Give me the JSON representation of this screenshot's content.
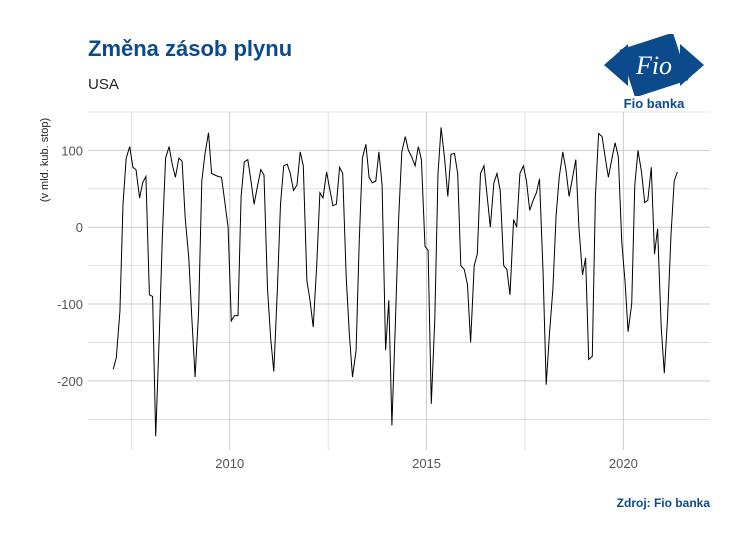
{
  "chart_data": {
    "type": "line",
    "title": "Změna zásob plynu",
    "subtitle": "USA",
    "ylabel": "(v mld. kub. stop)",
    "xlabel": "",
    "xlim": [
      2006.4,
      2022.2
    ],
    "ylim": [
      -290,
      150
    ],
    "x_ticks": [
      2010,
      2015,
      2020
    ],
    "y_ticks": [
      100,
      0,
      -100,
      -200
    ],
    "grid": true,
    "series": [
      {
        "color": "#000000",
        "points": [
          [
            2007.04,
            -185
          ],
          [
            2007.12,
            -170
          ],
          [
            2007.21,
            -110
          ],
          [
            2007.29,
            30
          ],
          [
            2007.37,
            90
          ],
          [
            2007.46,
            105
          ],
          [
            2007.54,
            78
          ],
          [
            2007.62,
            75
          ],
          [
            2007.71,
            38
          ],
          [
            2007.79,
            58
          ],
          [
            2007.87,
            66
          ],
          [
            2007.96,
            -88
          ],
          [
            2008.04,
            -90
          ],
          [
            2008.12,
            -272
          ],
          [
            2008.21,
            -140
          ],
          [
            2008.29,
            -10
          ],
          [
            2008.37,
            90
          ],
          [
            2008.46,
            105
          ],
          [
            2008.54,
            82
          ],
          [
            2008.62,
            65
          ],
          [
            2008.71,
            90
          ],
          [
            2008.79,
            86
          ],
          [
            2008.87,
            12
          ],
          [
            2008.96,
            -40
          ],
          [
            2009.04,
            -120
          ],
          [
            2009.12,
            -195
          ],
          [
            2009.21,
            -110
          ],
          [
            2009.29,
            60
          ],
          [
            2009.37,
            95
          ],
          [
            2009.46,
            123
          ],
          [
            2009.54,
            70
          ],
          [
            2009.62,
            68
          ],
          [
            2009.71,
            66
          ],
          [
            2009.79,
            65
          ],
          [
            2009.87,
            35
          ],
          [
            2009.96,
            0
          ],
          [
            2010.04,
            -122
          ],
          [
            2010.12,
            -115
          ],
          [
            2010.21,
            -115
          ],
          [
            2010.29,
            40
          ],
          [
            2010.37,
            85
          ],
          [
            2010.46,
            88
          ],
          [
            2010.54,
            60
          ],
          [
            2010.62,
            30
          ],
          [
            2010.71,
            55
          ],
          [
            2010.79,
            75
          ],
          [
            2010.87,
            68
          ],
          [
            2010.96,
            -80
          ],
          [
            2011.04,
            -145
          ],
          [
            2011.12,
            -188
          ],
          [
            2011.21,
            -80
          ],
          [
            2011.29,
            30
          ],
          [
            2011.37,
            80
          ],
          [
            2011.46,
            82
          ],
          [
            2011.54,
            70
          ],
          [
            2011.62,
            48
          ],
          [
            2011.71,
            55
          ],
          [
            2011.79,
            98
          ],
          [
            2011.87,
            80
          ],
          [
            2011.96,
            -70
          ],
          [
            2012.04,
            -95
          ],
          [
            2012.12,
            -130
          ],
          [
            2012.21,
            -50
          ],
          [
            2012.29,
            45
          ],
          [
            2012.37,
            38
          ],
          [
            2012.46,
            72
          ],
          [
            2012.54,
            50
          ],
          [
            2012.62,
            28
          ],
          [
            2012.71,
            30
          ],
          [
            2012.79,
            78
          ],
          [
            2012.87,
            70
          ],
          [
            2012.96,
            -65
          ],
          [
            2013.04,
            -140
          ],
          [
            2013.12,
            -195
          ],
          [
            2013.21,
            -160
          ],
          [
            2013.29,
            -20
          ],
          [
            2013.37,
            90
          ],
          [
            2013.46,
            108
          ],
          [
            2013.54,
            65
          ],
          [
            2013.62,
            58
          ],
          [
            2013.71,
            60
          ],
          [
            2013.79,
            98
          ],
          [
            2013.87,
            55
          ],
          [
            2013.96,
            -160
          ],
          [
            2014.04,
            -95
          ],
          [
            2014.12,
            -258
          ],
          [
            2014.21,
            -120
          ],
          [
            2014.29,
            10
          ],
          [
            2014.37,
            98
          ],
          [
            2014.46,
            118
          ],
          [
            2014.54,
            100
          ],
          [
            2014.62,
            92
          ],
          [
            2014.71,
            80
          ],
          [
            2014.79,
            105
          ],
          [
            2014.87,
            88
          ],
          [
            2014.96,
            -25
          ],
          [
            2015.04,
            -30
          ],
          [
            2015.12,
            -230
          ],
          [
            2015.21,
            -120
          ],
          [
            2015.29,
            70
          ],
          [
            2015.37,
            130
          ],
          [
            2015.46,
            88
          ],
          [
            2015.54,
            40
          ],
          [
            2015.62,
            95
          ],
          [
            2015.71,
            96
          ],
          [
            2015.79,
            70
          ],
          [
            2015.87,
            -50
          ],
          [
            2015.96,
            -55
          ],
          [
            2016.04,
            -75
          ],
          [
            2016.12,
            -150
          ],
          [
            2016.21,
            -50
          ],
          [
            2016.29,
            -35
          ],
          [
            2016.37,
            70
          ],
          [
            2016.46,
            80
          ],
          [
            2016.54,
            40
          ],
          [
            2016.62,
            0
          ],
          [
            2016.71,
            58
          ],
          [
            2016.79,
            70
          ],
          [
            2016.87,
            48
          ],
          [
            2016.96,
            -50
          ],
          [
            2017.04,
            -55
          ],
          [
            2017.12,
            -88
          ],
          [
            2017.21,
            10
          ],
          [
            2017.29,
            0
          ],
          [
            2017.37,
            70
          ],
          [
            2017.46,
            80
          ],
          [
            2017.54,
            60
          ],
          [
            2017.62,
            22
          ],
          [
            2017.71,
            35
          ],
          [
            2017.79,
            45
          ],
          [
            2017.87,
            63
          ],
          [
            2017.96,
            -60
          ],
          [
            2018.04,
            -205
          ],
          [
            2018.12,
            -140
          ],
          [
            2018.21,
            -80
          ],
          [
            2018.29,
            15
          ],
          [
            2018.37,
            65
          ],
          [
            2018.46,
            98
          ],
          [
            2018.54,
            75
          ],
          [
            2018.62,
            40
          ],
          [
            2018.71,
            65
          ],
          [
            2018.79,
            88
          ],
          [
            2018.87,
            0
          ],
          [
            2018.96,
            -62
          ],
          [
            2019.04,
            -40
          ],
          [
            2019.12,
            -172
          ],
          [
            2019.21,
            -168
          ],
          [
            2019.29,
            40
          ],
          [
            2019.37,
            122
          ],
          [
            2019.46,
            118
          ],
          [
            2019.54,
            90
          ],
          [
            2019.62,
            65
          ],
          [
            2019.71,
            90
          ],
          [
            2019.79,
            110
          ],
          [
            2019.87,
            92
          ],
          [
            2019.96,
            -20
          ],
          [
            2020.04,
            -70
          ],
          [
            2020.12,
            -136
          ],
          [
            2020.21,
            -100
          ],
          [
            2020.29,
            55
          ],
          [
            2020.37,
            100
          ],
          [
            2020.46,
            72
          ],
          [
            2020.54,
            32
          ],
          [
            2020.62,
            35
          ],
          [
            2020.71,
            78
          ],
          [
            2020.79,
            -35
          ],
          [
            2020.87,
            -2
          ],
          [
            2020.96,
            -130
          ],
          [
            2021.04,
            -190
          ],
          [
            2021.12,
            -120
          ],
          [
            2021.21,
            -10
          ],
          [
            2021.29,
            60
          ],
          [
            2021.37,
            72
          ]
        ]
      }
    ]
  },
  "logo": {
    "text": "Fio",
    "caption": "Fio banka"
  },
  "source": "Zdroj: Fio banka",
  "colors": {
    "brand": "#0b4a8b",
    "grid": "#cccccc",
    "line": "#000000"
  }
}
